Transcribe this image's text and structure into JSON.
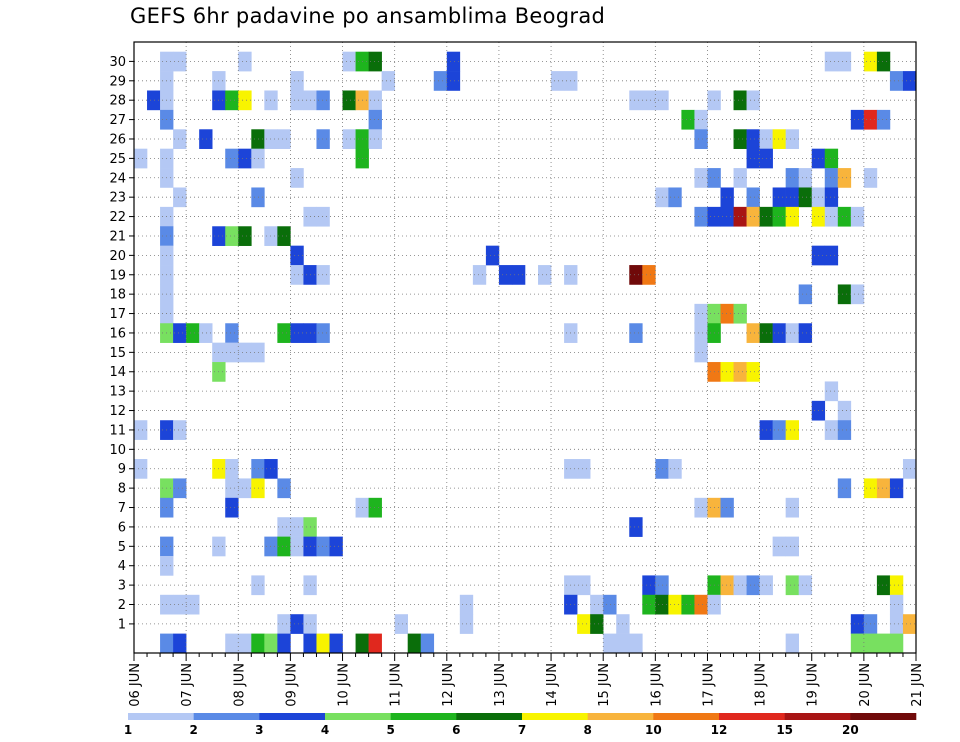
{
  "title": "GEFS 6hr padavine po ansamblima Beograd",
  "chart_data": {
    "type": "heatmap",
    "title": "GEFS 6hr padavine po ansamblima Beograd",
    "x_start_day": 6,
    "x_ticks": [
      "06 JUN",
      "07 JUN",
      "08 JUN",
      "09 JUN",
      "10 JUN",
      "11 JUN",
      "12 JUN",
      "13 JUN",
      "14 JUN",
      "15 JUN",
      "16 JUN",
      "17 JUN",
      "18 JUN",
      "19 JUN",
      "20 JUN",
      "21 JUN"
    ],
    "y_ticks": [
      "1",
      "2",
      "3",
      "4",
      "5",
      "6",
      "7",
      "8",
      "9",
      "10",
      "11",
      "12",
      "13",
      "14",
      "15",
      "16",
      "17",
      "18",
      "19",
      "20",
      "21",
      "22",
      "23",
      "24",
      "25",
      "26",
      "27",
      "28",
      "29",
      "30"
    ],
    "colorbar": {
      "labels": [
        "1",
        "2",
        "3",
        "4",
        "5",
        "6",
        "7",
        "8",
        "10",
        "12",
        "15",
        "20"
      ],
      "colors": [
        "#b4c8f4",
        "#5a8ae6",
        "#1c44d8",
        "#78e060",
        "#1eb41e",
        "#0a6e0a",
        "#f8f400",
        "#f8b43c",
        "#f07814",
        "#e0281e",
        "#a81414",
        "#700a0a"
      ]
    },
    "cells": [
      [
        30,
        2,
        0
      ],
      [
        30,
        3,
        0
      ],
      [
        30,
        8,
        0
      ],
      [
        30,
        16,
        0
      ],
      [
        30,
        17,
        4
      ],
      [
        30,
        18,
        5
      ],
      [
        30,
        24,
        2
      ],
      [
        30,
        53,
        0
      ],
      [
        30,
        54,
        0
      ],
      [
        30,
        56,
        6
      ],
      [
        30,
        57,
        5
      ],
      [
        29,
        2,
        0
      ],
      [
        29,
        6,
        0
      ],
      [
        29,
        12,
        0
      ],
      [
        29,
        19,
        0
      ],
      [
        29,
        23,
        1
      ],
      [
        29,
        24,
        2
      ],
      [
        29,
        32,
        0
      ],
      [
        29,
        33,
        0
      ],
      [
        29,
        58,
        1
      ],
      [
        29,
        59,
        2
      ],
      [
        28,
        1,
        2
      ],
      [
        28,
        2,
        0
      ],
      [
        28,
        6,
        2
      ],
      [
        28,
        7,
        4
      ],
      [
        28,
        8,
        6
      ],
      [
        28,
        10,
        0
      ],
      [
        28,
        12,
        0
      ],
      [
        28,
        13,
        0
      ],
      [
        28,
        14,
        1
      ],
      [
        28,
        16,
        5
      ],
      [
        28,
        17,
        7
      ],
      [
        28,
        18,
        0
      ],
      [
        28,
        38,
        0
      ],
      [
        28,
        39,
        0
      ],
      [
        28,
        40,
        0
      ],
      [
        28,
        44,
        0
      ],
      [
        28,
        46,
        5
      ],
      [
        28,
        47,
        0
      ],
      [
        27,
        2,
        1
      ],
      [
        27,
        18,
        1
      ],
      [
        27,
        42,
        4
      ],
      [
        27,
        43,
        0
      ],
      [
        27,
        55,
        2
      ],
      [
        27,
        56,
        9
      ],
      [
        27,
        57,
        1
      ],
      [
        26,
        3,
        0
      ],
      [
        26,
        5,
        2
      ],
      [
        26,
        9,
        5
      ],
      [
        26,
        10,
        0
      ],
      [
        26,
        11,
        0
      ],
      [
        26,
        14,
        1
      ],
      [
        26,
        16,
        0
      ],
      [
        26,
        17,
        4
      ],
      [
        26,
        18,
        0
      ],
      [
        26,
        43,
        1
      ],
      [
        26,
        46,
        5
      ],
      [
        26,
        47,
        2
      ],
      [
        26,
        48,
        0
      ],
      [
        26,
        49,
        6
      ],
      [
        26,
        50,
        0
      ],
      [
        25,
        0,
        0
      ],
      [
        25,
        2,
        0
      ],
      [
        25,
        7,
        1
      ],
      [
        25,
        8,
        2
      ],
      [
        25,
        9,
        0
      ],
      [
        25,
        17,
        4
      ],
      [
        25,
        47,
        2
      ],
      [
        25,
        48,
        2
      ],
      [
        25,
        52,
        2
      ],
      [
        25,
        53,
        4
      ],
      [
        24,
        2,
        0
      ],
      [
        24,
        12,
        0
      ],
      [
        24,
        43,
        0
      ],
      [
        24,
        44,
        1
      ],
      [
        24,
        46,
        0
      ],
      [
        24,
        50,
        1
      ],
      [
        24,
        51,
        0
      ],
      [
        24,
        53,
        1
      ],
      [
        24,
        54,
        7
      ],
      [
        24,
        56,
        0
      ],
      [
        23,
        3,
        0
      ],
      [
        23,
        9,
        1
      ],
      [
        23,
        40,
        0
      ],
      [
        23,
        41,
        1
      ],
      [
        23,
        45,
        2
      ],
      [
        23,
        47,
        1
      ],
      [
        23,
        49,
        2
      ],
      [
        23,
        50,
        2
      ],
      [
        23,
        51,
        5
      ],
      [
        23,
        52,
        0
      ],
      [
        23,
        53,
        2
      ],
      [
        22,
        2,
        0
      ],
      [
        22,
        13,
        0
      ],
      [
        22,
        14,
        0
      ],
      [
        22,
        43,
        1
      ],
      [
        22,
        44,
        2
      ],
      [
        22,
        45,
        2
      ],
      [
        22,
        46,
        10
      ],
      [
        22,
        47,
        7
      ],
      [
        22,
        48,
        5
      ],
      [
        22,
        49,
        4
      ],
      [
        22,
        50,
        6
      ],
      [
        22,
        52,
        6
      ],
      [
        22,
        53,
        0
      ],
      [
        22,
        54,
        4
      ],
      [
        22,
        55,
        0
      ],
      [
        21,
        2,
        1
      ],
      [
        21,
        6,
        2
      ],
      [
        21,
        7,
        3
      ],
      [
        21,
        8,
        5
      ],
      [
        21,
        10,
        0
      ],
      [
        21,
        11,
        5
      ],
      [
        20,
        2,
        0
      ],
      [
        20,
        12,
        2
      ],
      [
        20,
        27,
        2
      ],
      [
        20,
        52,
        2
      ],
      [
        20,
        53,
        2
      ],
      [
        19,
        2,
        0
      ],
      [
        19,
        12,
        0
      ],
      [
        19,
        13,
        2
      ],
      [
        19,
        14,
        0
      ],
      [
        19,
        26,
        0
      ],
      [
        19,
        28,
        2
      ],
      [
        19,
        29,
        2
      ],
      [
        19,
        31,
        0
      ],
      [
        19,
        33,
        0
      ],
      [
        19,
        38,
        11
      ],
      [
        19,
        39,
        8
      ],
      [
        18,
        2,
        0
      ],
      [
        18,
        51,
        1
      ],
      [
        18,
        54,
        5
      ],
      [
        18,
        55,
        0
      ],
      [
        17,
        2,
        0
      ],
      [
        17,
        43,
        0
      ],
      [
        17,
        44,
        3
      ],
      [
        17,
        45,
        8
      ],
      [
        17,
        46,
        3
      ],
      [
        16,
        2,
        3
      ],
      [
        16,
        3,
        2
      ],
      [
        16,
        4,
        4
      ],
      [
        16,
        5,
        0
      ],
      [
        16,
        7,
        1
      ],
      [
        16,
        11,
        4
      ],
      [
        16,
        12,
        2
      ],
      [
        16,
        13,
        2
      ],
      [
        16,
        14,
        1
      ],
      [
        16,
        33,
        0
      ],
      [
        16,
        38,
        1
      ],
      [
        16,
        43,
        0
      ],
      [
        16,
        44,
        4
      ],
      [
        16,
        47,
        7
      ],
      [
        16,
        48,
        5
      ],
      [
        16,
        49,
        2
      ],
      [
        16,
        50,
        0
      ],
      [
        16,
        51,
        2
      ],
      [
        15,
        6,
        0
      ],
      [
        15,
        7,
        0
      ],
      [
        15,
        8,
        0
      ],
      [
        15,
        9,
        0
      ],
      [
        15,
        43,
        0
      ],
      [
        14,
        6,
        3
      ],
      [
        14,
        44,
        8
      ],
      [
        14,
        45,
        6
      ],
      [
        14,
        46,
        7
      ],
      [
        14,
        47,
        6
      ],
      [
        13,
        53,
        0
      ],
      [
        12,
        52,
        2
      ],
      [
        12,
        54,
        0
      ],
      [
        11,
        0,
        0
      ],
      [
        11,
        2,
        2
      ],
      [
        11,
        3,
        0
      ],
      [
        11,
        48,
        2
      ],
      [
        11,
        49,
        1
      ],
      [
        11,
        50,
        6
      ],
      [
        11,
        53,
        0
      ],
      [
        11,
        54,
        1
      ],
      [
        9,
        0,
        0
      ],
      [
        9,
        6,
        6
      ],
      [
        9,
        7,
        0
      ],
      [
        9,
        9,
        1
      ],
      [
        9,
        10,
        2
      ],
      [
        9,
        33,
        0
      ],
      [
        9,
        34,
        0
      ],
      [
        9,
        40,
        1
      ],
      [
        9,
        41,
        0
      ],
      [
        9,
        59,
        0
      ],
      [
        8,
        2,
        3
      ],
      [
        8,
        3,
        1
      ],
      [
        8,
        7,
        0
      ],
      [
        8,
        8,
        0
      ],
      [
        8,
        9,
        6
      ],
      [
        8,
        11,
        1
      ],
      [
        8,
        54,
        1
      ],
      [
        8,
        56,
        6
      ],
      [
        8,
        57,
        7
      ],
      [
        8,
        58,
        2
      ],
      [
        7,
        2,
        1
      ],
      [
        7,
        7,
        2
      ],
      [
        7,
        17,
        0
      ],
      [
        7,
        18,
        4
      ],
      [
        7,
        43,
        0
      ],
      [
        7,
        44,
        7
      ],
      [
        7,
        45,
        1
      ],
      [
        7,
        50,
        0
      ],
      [
        6,
        11,
        0
      ],
      [
        6,
        12,
        0
      ],
      [
        6,
        13,
        3
      ],
      [
        6,
        38,
        2
      ],
      [
        5,
        2,
        1
      ],
      [
        5,
        6,
        0
      ],
      [
        5,
        10,
        1
      ],
      [
        5,
        11,
        4
      ],
      [
        5,
        12,
        0
      ],
      [
        5,
        13,
        2
      ],
      [
        5,
        14,
        1
      ],
      [
        5,
        15,
        2
      ],
      [
        5,
        49,
        0
      ],
      [
        5,
        50,
        0
      ],
      [
        4,
        2,
        0
      ],
      [
        3,
        9,
        0
      ],
      [
        3,
        13,
        0
      ],
      [
        3,
        33,
        0
      ],
      [
        3,
        34,
        0
      ],
      [
        3,
        39,
        2
      ],
      [
        3,
        40,
        1
      ],
      [
        3,
        44,
        4
      ],
      [
        3,
        45,
        7
      ],
      [
        3,
        46,
        0
      ],
      [
        3,
        47,
        1
      ],
      [
        3,
        48,
        0
      ],
      [
        3,
        50,
        3
      ],
      [
        3,
        51,
        0
      ],
      [
        3,
        57,
        5
      ],
      [
        3,
        58,
        6
      ],
      [
        2,
        2,
        0
      ],
      [
        2,
        3,
        0
      ],
      [
        2,
        4,
        0
      ],
      [
        2,
        25,
        0
      ],
      [
        2,
        33,
        2
      ],
      [
        2,
        35,
        0
      ],
      [
        2,
        36,
        1
      ],
      [
        2,
        39,
        4
      ],
      [
        2,
        40,
        5
      ],
      [
        2,
        41,
        6
      ],
      [
        2,
        42,
        4
      ],
      [
        2,
        43,
        8
      ],
      [
        2,
        44,
        0
      ],
      [
        2,
        58,
        0
      ],
      [
        1,
        11,
        0
      ],
      [
        1,
        12,
        2
      ],
      [
        1,
        13,
        0
      ],
      [
        1,
        20,
        0
      ],
      [
        1,
        25,
        0
      ],
      [
        1,
        34,
        6
      ],
      [
        1,
        35,
        5
      ],
      [
        1,
        37,
        0
      ],
      [
        1,
        55,
        2
      ],
      [
        1,
        56,
        1
      ],
      [
        1,
        58,
        0
      ],
      [
        1,
        59,
        7
      ],
      [
        0,
        2,
        1
      ],
      [
        0,
        3,
        2
      ],
      [
        0,
        7,
        0
      ],
      [
        0,
        8,
        0
      ],
      [
        0,
        9,
        4
      ],
      [
        0,
        10,
        3
      ],
      [
        0,
        11,
        2
      ],
      [
        0,
        13,
        2
      ],
      [
        0,
        14,
        6
      ],
      [
        0,
        15,
        2
      ],
      [
        0,
        17,
        5
      ],
      [
        0,
        18,
        9
      ],
      [
        0,
        21,
        5
      ],
      [
        0,
        22,
        1
      ],
      [
        0,
        36,
        0
      ],
      [
        0,
        37,
        0
      ],
      [
        0,
        38,
        0
      ],
      [
        0,
        50,
        0
      ],
      [
        0,
        55,
        3
      ],
      [
        0,
        56,
        3
      ],
      [
        0,
        57,
        3
      ],
      [
        0,
        58,
        3
      ]
    ]
  }
}
